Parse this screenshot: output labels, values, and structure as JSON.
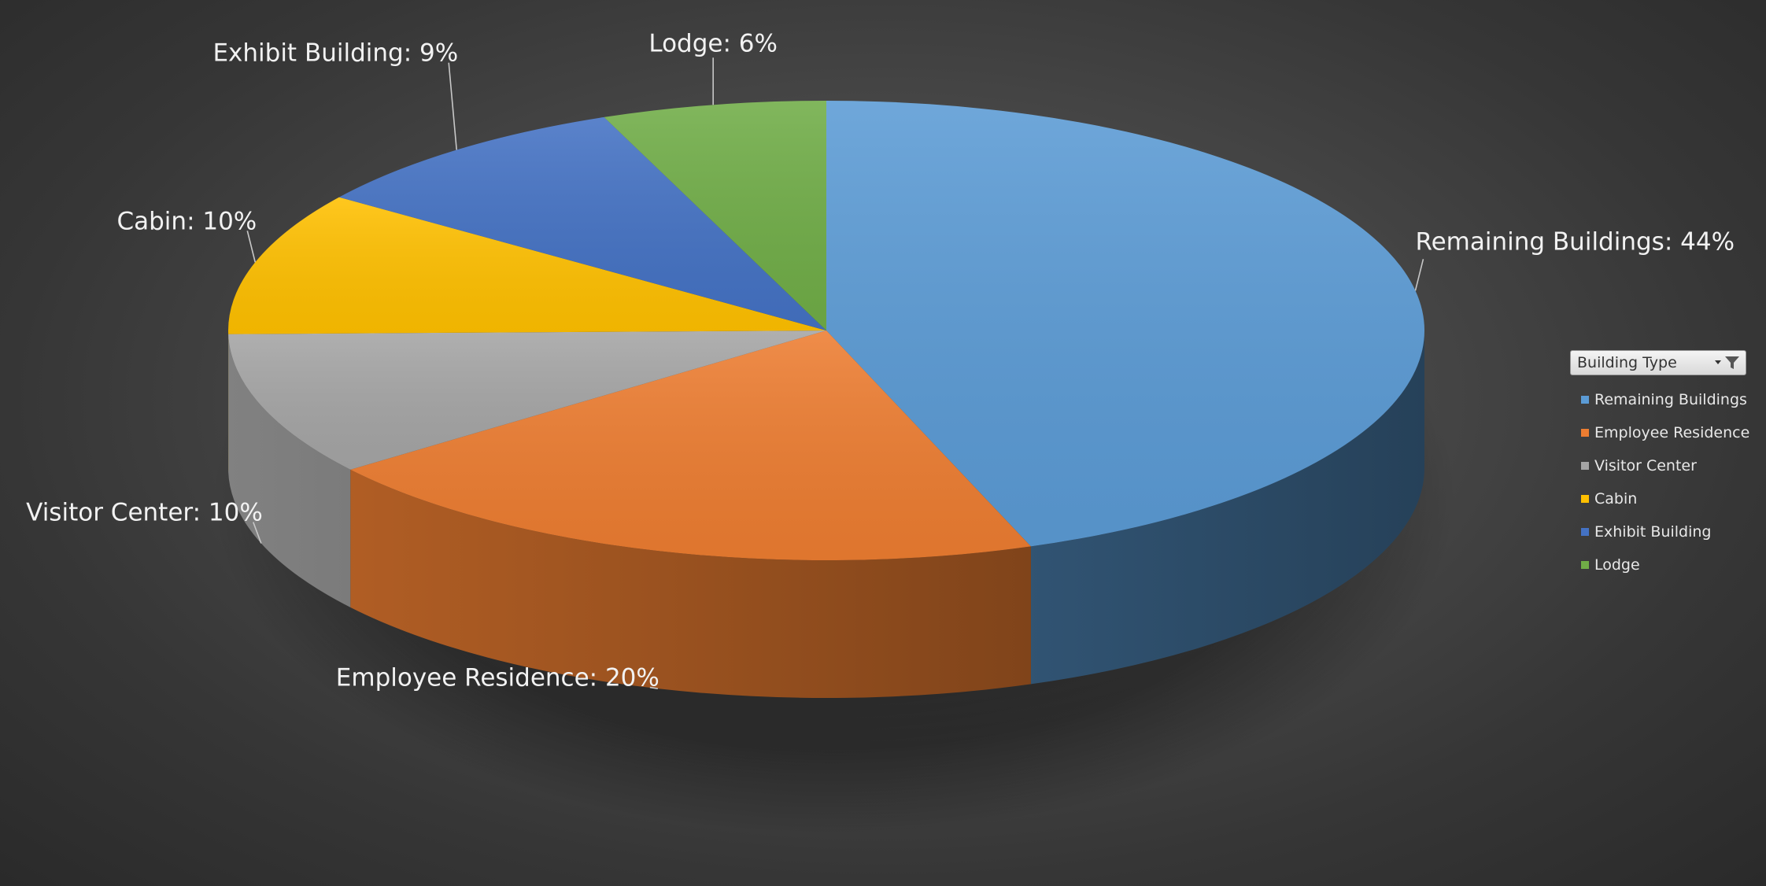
{
  "chart_data": {
    "type": "pie",
    "style": "3d",
    "categories": [
      "Remaining Buildings",
      "Employee Residence",
      "Visitor Center",
      "Cabin",
      "Exhibit Building",
      "Lodge"
    ],
    "values": [
      44,
      20,
      10,
      10,
      9,
      6
    ],
    "colors": [
      "#5b9bd5",
      "#ed7d31",
      "#a5a5a5",
      "#ffc000",
      "#4472c4",
      "#70ad47"
    ],
    "labels": [
      "Remaining Buildings: 44%",
      "Employee Residence: 20%",
      "Visitor Center: 10%",
      "Cabin: 10%",
      "Exhibit Building: 9%",
      "Lodge: 6%"
    ],
    "legend": {
      "title": "Building Type",
      "position": "right",
      "filter_icon": "filter-icon"
    }
  }
}
